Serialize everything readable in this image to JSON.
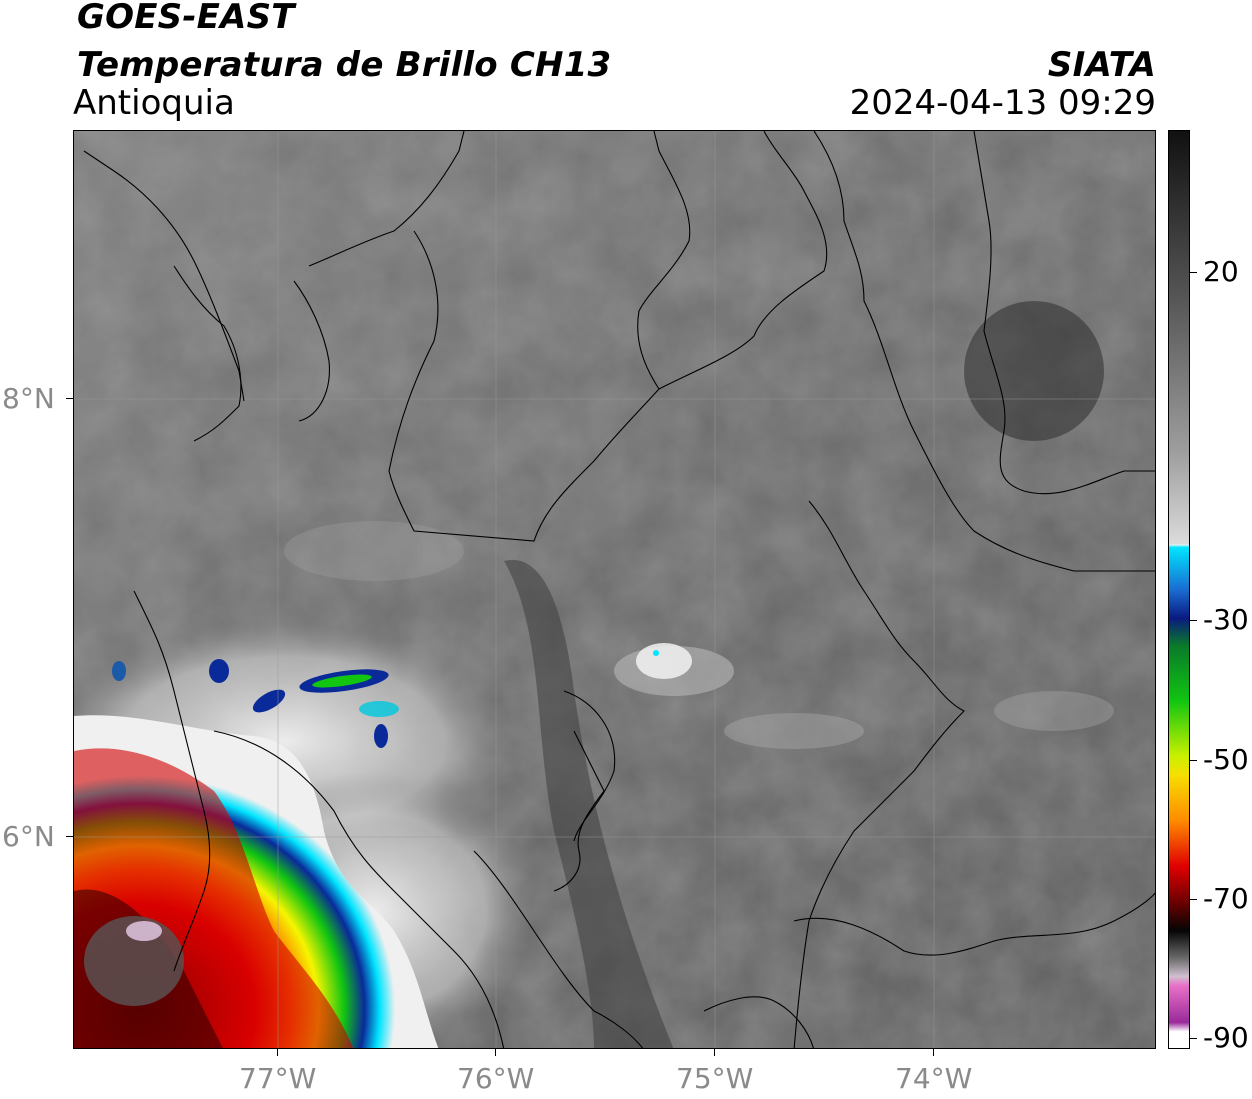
{
  "header": {
    "satellite": "GOES-EAST",
    "product": "Temperatura de Brillo CH13",
    "region": "Antioquia",
    "agency": "SIATA",
    "datetime": "2024-04-13 09:29"
  },
  "map": {
    "lon_labels": [
      "77°W",
      "76°W",
      "75°W",
      "74°W"
    ],
    "lat_labels": [
      "8°N",
      "6°N"
    ]
  },
  "colorbar": {
    "labels": [
      "20",
      "-30",
      "-50",
      "-70",
      "-90"
    ],
    "colors": {
      "warm_dark": "#1a1a1a",
      "gray": "#8c8c8c",
      "white": "#f5f5f5",
      "cyan": "#00e5ff",
      "blue": "#0a2a9a",
      "green": "#11c511",
      "yellow": "#f5f500",
      "orange": "#ff8c00",
      "red": "#e00000",
      "dark_red": "#4a0000",
      "black": "#050505",
      "pink": "#e060c0",
      "purple": "#8a1a8a"
    }
  }
}
